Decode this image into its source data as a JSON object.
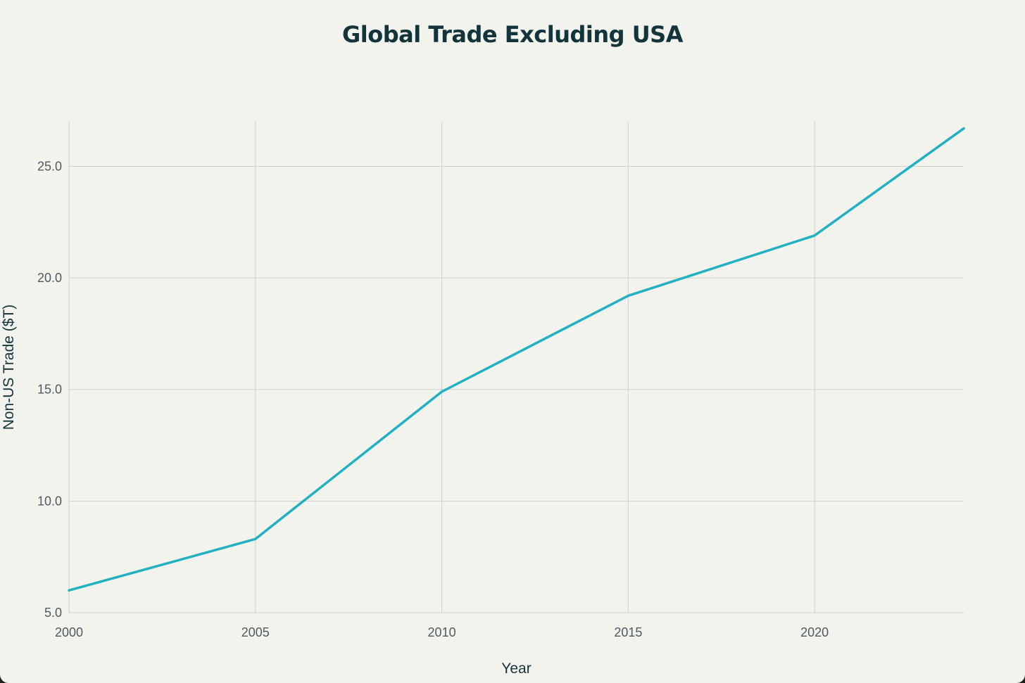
{
  "chart_data": {
    "type": "line",
    "title": "Global Trade Excluding USA",
    "xlabel": "Year",
    "ylabel": "Non-US Trade ($T)",
    "xlim": [
      2000,
      2024
    ],
    "ylim": [
      5.0,
      27.0
    ],
    "x_ticks": [
      2000,
      2005,
      2010,
      2015,
      2020
    ],
    "x_tick_labels": [
      "2000",
      "2005",
      "2010",
      "2015",
      "2020"
    ],
    "y_ticks": [
      5,
      10,
      15,
      20,
      25
    ],
    "y_tick_labels": [
      "5.0",
      "10.0",
      "15.0",
      "20.0",
      "25.0"
    ],
    "grid": true,
    "series": [
      {
        "name": "Non-US Trade",
        "color": "#21b1c2",
        "x": [
          2000,
          2005,
          2010,
          2015,
          2020,
          2024
        ],
        "values": [
          6.0,
          8.3,
          14.9,
          19.2,
          21.9,
          26.7
        ]
      }
    ]
  }
}
